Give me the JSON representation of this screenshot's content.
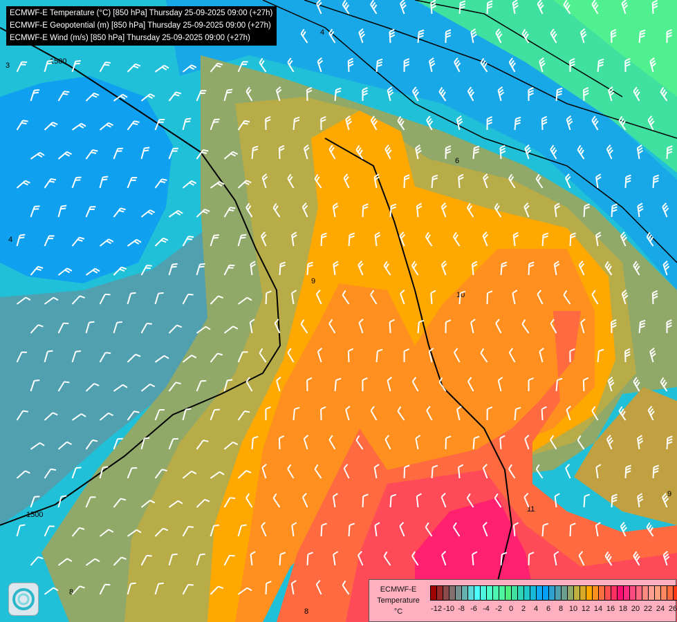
{
  "title_lines": [
    "ECMWF-E Temperature (°C) [850 hPa] Thursday 25-09-2025 09:00 (+27h)",
    "ECMWF-E Geopotential (m) [850 hPa] Thursday 25-09-2025 09:00 (+27h)",
    "ECMWF-E Wind (m/s) [850 hPa] Thursday 25-09-2025 09:00 (+27h)"
  ],
  "legend": {
    "line1": "ECMWF-E",
    "line2": "Temperature",
    "line3": "°C",
    "ticks": [
      "-12",
      "-10",
      "-8",
      "-6",
      "-4",
      "-2",
      "0",
      "2",
      "4",
      "6",
      "8",
      "10",
      "12",
      "14",
      "16",
      "18",
      "20",
      "22",
      "24",
      "26"
    ],
    "colors": [
      "#a00000",
      "#982828",
      "#8c4a4a",
      "#827070",
      "#789090",
      "#66b0b0",
      "#5ed8d8",
      "#4dffff",
      "#4df4e0",
      "#4dfcc8",
      "#4ef8b0",
      "#50f5a0",
      "#4ef080",
      "#40e0a0",
      "#30d4b8",
      "#20c8c8",
      "#18b8d8",
      "#10a8f0",
      "#00a0ff",
      "#30a0d0",
      "#50a0b0",
      "#6aa090",
      "#90a868",
      "#c0b040",
      "#d8a828",
      "#ffa800",
      "#ff9020",
      "#ff7040",
      "#ff5050",
      "#ff3060",
      "#ff1070",
      "#ff2a80",
      "#ff4a80",
      "#ff6a80",
      "#ff8a80",
      "#ffa090",
      "#ffa080",
      "#ff8860",
      "#ff6a40",
      "#ff3a18"
    ]
  },
  "contour_labels": [
    "1500",
    "1500",
    "4",
    "6",
    "8",
    "9",
    "10",
    "11",
    "9",
    "3",
    "4",
    "8"
  ],
  "icons": {
    "logo": "meteo-swirl-logo"
  }
}
